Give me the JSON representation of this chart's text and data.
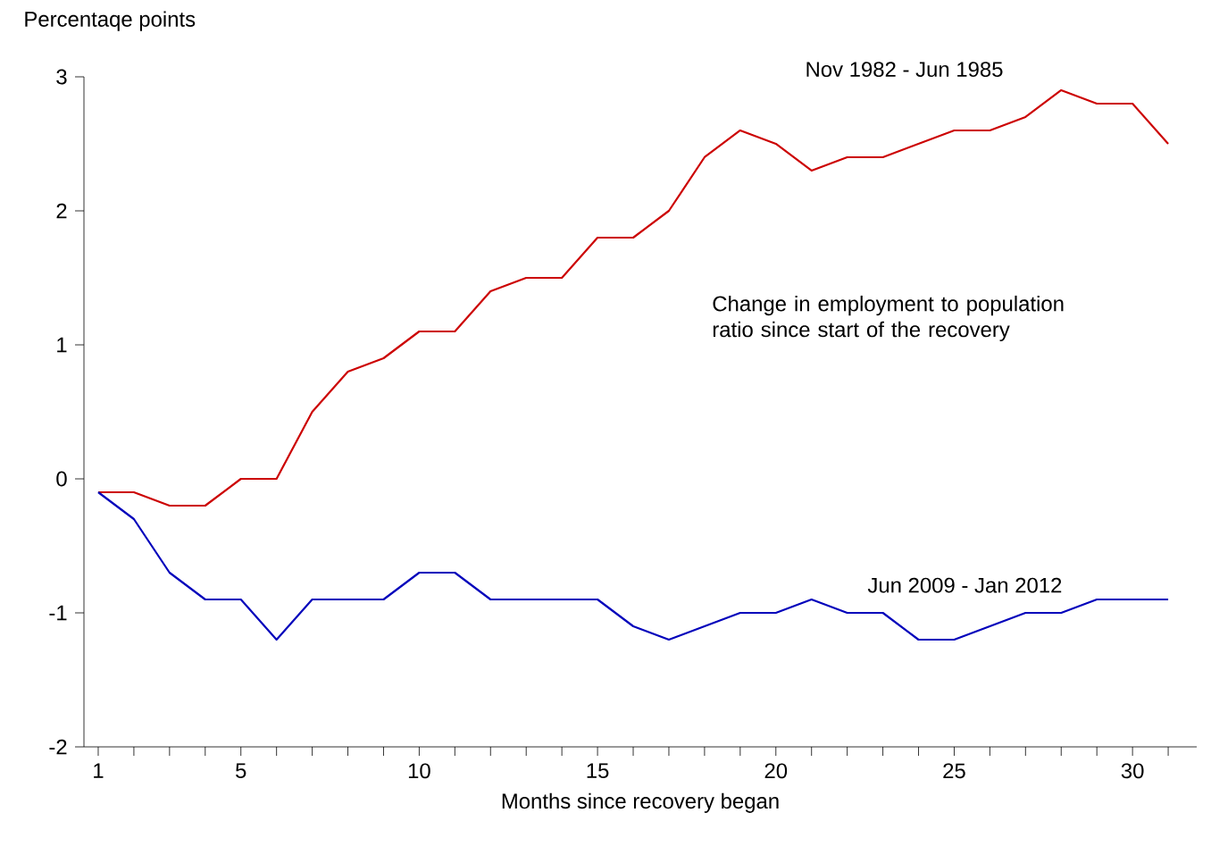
{
  "chart_data": {
    "type": "line",
    "ylabel": "Percentaqe points",
    "xlabel": "Months since recovery began",
    "annotations": [
      "Change in employment to population ratio since start of the recovery"
    ],
    "x": [
      1,
      2,
      3,
      4,
      5,
      6,
      7,
      8,
      9,
      10,
      11,
      12,
      13,
      14,
      15,
      16,
      17,
      18,
      19,
      20,
      21,
      22,
      23,
      24,
      25,
      26,
      27,
      28,
      29,
      30,
      31
    ],
    "series": [
      {
        "name": "Nov 1982 - Jun 1985",
        "color": "#cc0000",
        "values": [
          -0.1,
          -0.1,
          -0.2,
          -0.2,
          0,
          0,
          0.5,
          0.8,
          0.9,
          1.1,
          1.1,
          1.4,
          1.5,
          1.5,
          1.8,
          1.8,
          2.0,
          2.4,
          2.6,
          2.5,
          2.3,
          2.4,
          2.4,
          2.5,
          2.6,
          2.6,
          2.7,
          2.9,
          2.8,
          2.8,
          2.5
        ]
      },
      {
        "name": "Jun 2009 - Jan 2012",
        "color": "#0000bb",
        "values": [
          -0.1,
          -0.3,
          -0.7,
          -0.9,
          -0.9,
          -1.2,
          -0.9,
          -0.9,
          -0.9,
          -0.7,
          -0.7,
          -0.9,
          -0.9,
          -0.9,
          -0.9,
          -1.1,
          -1.2,
          -1.1,
          -1.0,
          -1.0,
          -0.9,
          -1.0,
          -1.0,
          -1.2,
          -1.2,
          -1.1,
          -1.0,
          -1.0,
          -0.9,
          -0.9,
          -0.9
        ]
      }
    ],
    "xlim": [
      0.6,
      31.8
    ],
    "ylim": [
      -2,
      3
    ],
    "xticks": [
      1,
      {
        "value": 2,
        "label": null
      },
      {
        "value": 3,
        "label": null
      },
      {
        "value": 4,
        "label": null
      },
      5,
      {
        "value": 6,
        "label": null
      },
      {
        "value": 7,
        "label": null
      },
      {
        "value": 8,
        "label": null
      },
      {
        "value": 9,
        "label": null
      },
      10,
      {
        "value": 11,
        "label": null
      },
      {
        "value": 12,
        "label": null
      },
      {
        "value": 13,
        "label": null
      },
      {
        "value": 14,
        "label": null
      },
      15,
      {
        "value": 16,
        "label": null
      },
      {
        "value": 17,
        "label": null
      },
      {
        "value": 18,
        "label": null
      },
      {
        "value": 19,
        "label": null
      },
      20,
      {
        "value": 21,
        "label": null
      },
      {
        "value": 22,
        "label": null
      },
      {
        "value": 23,
        "label": null
      },
      {
        "value": 24,
        "label": null
      },
      25,
      {
        "value": 26,
        "label": null
      },
      {
        "value": 27,
        "label": null
      },
      {
        "value": 28,
        "label": null
      },
      {
        "value": 29,
        "label": null
      },
      30,
      {
        "value": 31,
        "label": null
      }
    ],
    "yticks": [
      -2,
      -1,
      0,
      1,
      2,
      3
    ],
    "grid": false,
    "legend": false,
    "marker": "none",
    "line_style": "solid"
  }
}
